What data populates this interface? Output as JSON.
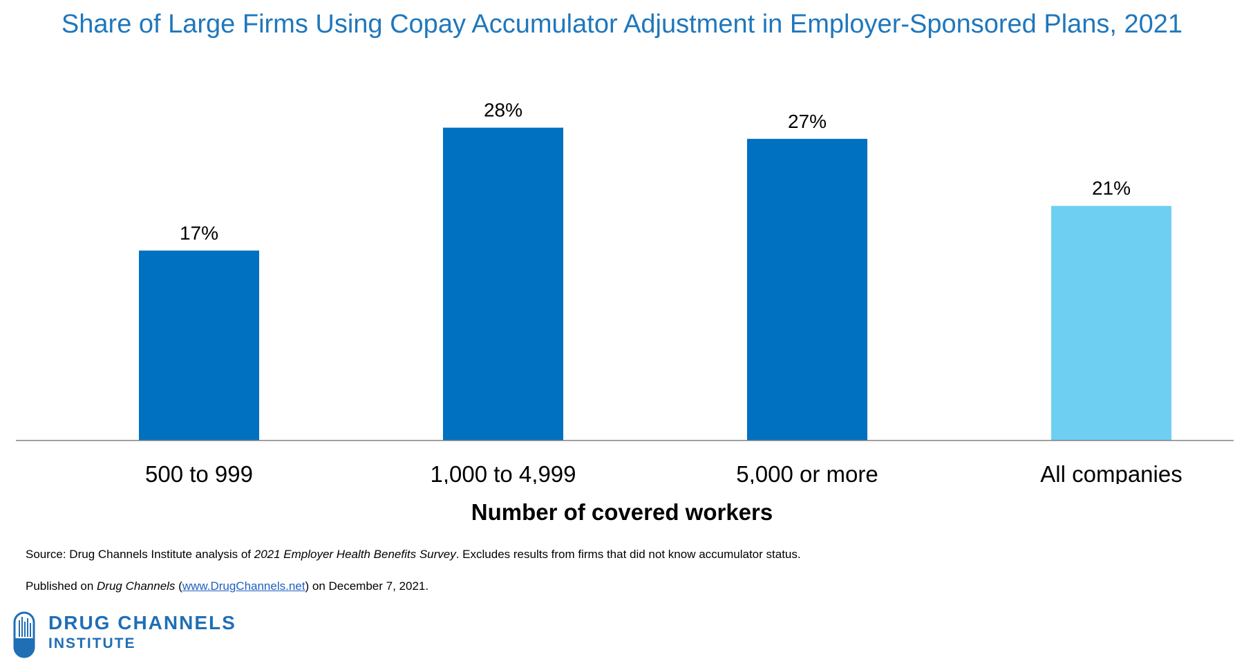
{
  "chart_data": {
    "type": "bar",
    "title": "Share of Large Firms Using Copay Accumulator Adjustment in Employer-Sponsored Plans, 2021",
    "xlabel": "Number of covered workers",
    "ylabel": "",
    "categories": [
      "500 to 999",
      "1,000 to 4,999",
      "5,000 or more",
      "All companies"
    ],
    "values": [
      17,
      28,
      27,
      21
    ],
    "data_labels": [
      "17%",
      "28%",
      "27%",
      "21%"
    ],
    "bar_colors": [
      "#0070c0",
      "#0070c0",
      "#0070c0",
      "#6fcff3"
    ],
    "ylim": [
      0,
      32
    ],
    "grid": false,
    "legend": "none"
  },
  "footnotes": {
    "source_prefix": "Source: Drug Channels Institute analysis of ",
    "source_italic": "2021 Employer Health Benefits Survey",
    "source_suffix": ". Excludes results from firms that did not know accumulator status.",
    "published_prefix": "Published on ",
    "published_italic": "Drug Channels",
    "published_paren_open": " (",
    "published_link": "www.DrugChannels.net",
    "published_suffix": ") on December 7, 2021."
  },
  "logo": {
    "line1": "DRUG CHANNELS",
    "line2": "INSTITUTE",
    "icon": "pill-bars-icon",
    "color": "#1f6fb5"
  }
}
